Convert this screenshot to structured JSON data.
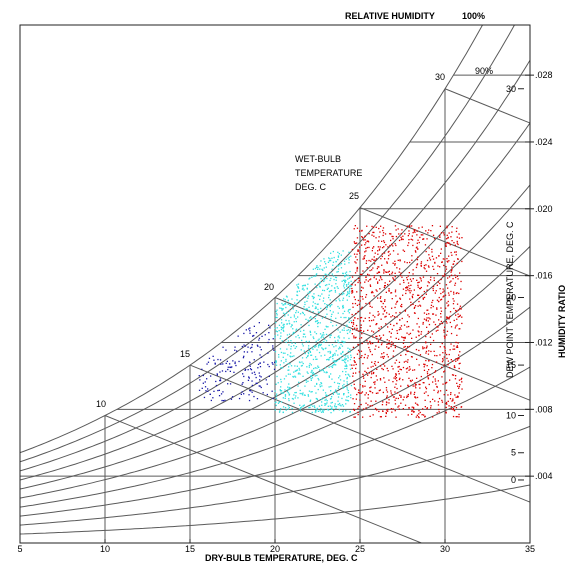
{
  "chart_data": {
    "type": "scatter",
    "title": "",
    "xlabel": "DRY-BULB TEMPERATURE, DEG. C",
    "ylabel": "HUMIDITY RATIO",
    "xlim": [
      5,
      35
    ],
    "ylim": [
      0,
      0.031
    ],
    "x_ticks": [
      "5",
      "10",
      "15",
      "20",
      "25",
      "30",
      "35"
    ],
    "y_ticks": [
      ".004",
      ".008",
      ".012",
      ".016",
      ".020",
      ".024",
      ".028"
    ],
    "y_tick_values": [
      0.004,
      0.008,
      0.012,
      0.016,
      0.02,
      0.024,
      0.028
    ],
    "dew_point_axis": {
      "label": "DEW POINT TEMPERATURE, DEG. C",
      "ticks": [
        "0",
        "5",
        "10",
        "15",
        "20",
        "30"
      ],
      "tick_values": [
        0,
        5,
        10,
        15,
        20,
        30
      ]
    },
    "wet_bulb": {
      "label_lines": [
        "WET-BULB",
        "TEMPERATURE",
        "DEG. C"
      ],
      "ticks": [
        "10",
        "15",
        "20",
        "25",
        "30"
      ],
      "tick_values": [
        10,
        15,
        20,
        25,
        30
      ]
    },
    "relative_humidity": {
      "header": "RELATIVE HUMIDITY",
      "header_value": "100%",
      "curve_label": "90%",
      "curves": [
        1.0,
        0.9,
        0.8,
        0.7,
        0.6,
        0.5,
        0.4,
        0.3,
        0.2,
        0.1
      ]
    },
    "grid": true,
    "legend": "none",
    "series": [
      {
        "color": "#1a1aa8",
        "x_range": [
          15.5,
          20
        ],
        "w_range": [
          0.0085,
          0.0132
        ],
        "count": 180
      },
      {
        "color": "#33e0e0",
        "x_range": [
          20,
          24.5
        ],
        "w_range": [
          0.0078,
          0.0175
        ],
        "count": 900
      },
      {
        "color": "#dd0000",
        "x_range": [
          24.5,
          31
        ],
        "w_range": [
          0.0075,
          0.019
        ],
        "count": 1300
      }
    ]
  }
}
